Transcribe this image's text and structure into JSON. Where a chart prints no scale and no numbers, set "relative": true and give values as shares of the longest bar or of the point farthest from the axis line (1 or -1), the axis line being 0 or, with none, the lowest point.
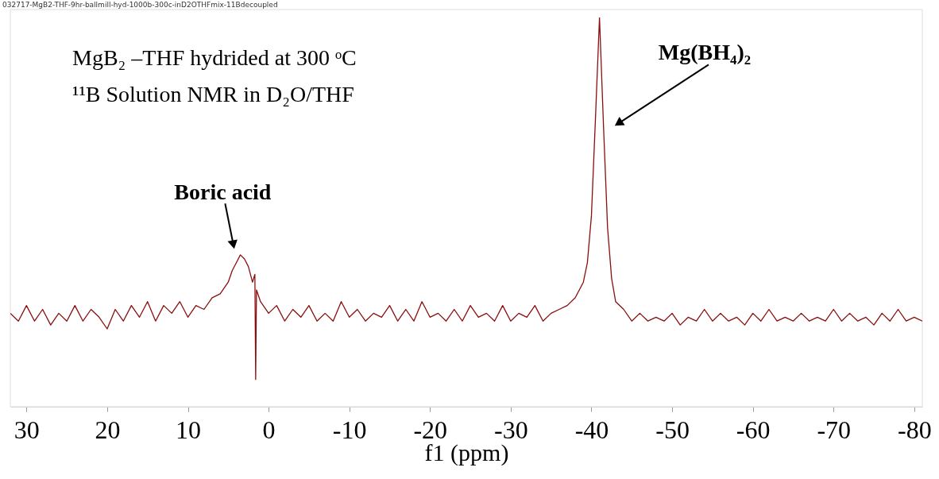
{
  "chart_data": {
    "type": "line",
    "title": "032717-MgB2-THF-9hr-ballmill-hyd-1000b-300c-inD2OTHFmix-11Bdecoupled",
    "xlabel": "f1 (ppm)",
    "relative": true,
    "grid": false,
    "marker": "none",
    "line_style": "solid",
    "xlim": [
      32,
      -81
    ],
    "xticks": [
      30,
      20,
      10,
      0,
      -10,
      -20,
      -30,
      -40,
      -50,
      -60,
      -70,
      -80
    ],
    "annotations": [
      "MgB₂ –THF hydrided  at 300 ᵒC",
      "¹¹B Solution NMR in D₂O/THF",
      {
        "text": "Boric acid",
        "x": 4.4,
        "y": 0.42
      },
      {
        "text": "Mg(BH₄)₂",
        "x": -43.5,
        "y": 0.73
      }
    ],
    "series": [
      {
        "color": "#8b0e0e",
        "x": [
          32,
          31,
          30,
          29,
          28,
          27,
          26,
          25,
          24,
          23,
          22,
          21,
          20,
          19,
          18,
          17,
          16,
          15,
          14,
          13,
          12,
          11,
          10,
          9,
          8,
          7,
          6,
          5,
          4.5,
          4,
          3.5,
          3,
          2.5,
          2,
          1.7,
          1.6,
          1.5,
          1,
          0,
          -1,
          -2,
          -3,
          -4,
          -5,
          -6,
          -7,
          -8,
          -9,
          -10,
          -11,
          -12,
          -13,
          -14,
          -15,
          -16,
          -17,
          -18,
          -19,
          -20,
          -21,
          -22,
          -23,
          -24,
          -25,
          -26,
          -27,
          -28,
          -29,
          -30,
          -31,
          -32,
          -33,
          -34,
          -35,
          -36,
          -37,
          -38,
          -39,
          -39.5,
          -40,
          -40.5,
          -41,
          -41.5,
          -42,
          -42.5,
          -43,
          -44,
          -45,
          -46,
          -47,
          -48,
          -49,
          -50,
          -51,
          -52,
          -53,
          -54,
          -55,
          -56,
          -57,
          -58,
          -59,
          -60,
          -61,
          -62,
          -63,
          -64,
          -65,
          -66,
          -67,
          -68,
          -69,
          -70,
          -71,
          -72,
          -73,
          -74,
          -75,
          -76,
          -77,
          -78,
          -79,
          -80,
          -81
        ],
        "values": [
          0.24,
          0.22,
          0.26,
          0.22,
          0.25,
          0.21,
          0.24,
          0.22,
          0.26,
          0.22,
          0.25,
          0.23,
          0.2,
          0.25,
          0.22,
          0.26,
          0.23,
          0.27,
          0.22,
          0.26,
          0.24,
          0.27,
          0.23,
          0.26,
          0.25,
          0.28,
          0.29,
          0.32,
          0.35,
          0.37,
          0.39,
          0.38,
          0.36,
          0.32,
          0.34,
          0.07,
          0.3,
          0.27,
          0.24,
          0.26,
          0.22,
          0.25,
          0.23,
          0.26,
          0.22,
          0.24,
          0.22,
          0.27,
          0.23,
          0.25,
          0.22,
          0.24,
          0.23,
          0.26,
          0.22,
          0.25,
          0.22,
          0.27,
          0.23,
          0.24,
          0.22,
          0.25,
          0.22,
          0.26,
          0.23,
          0.24,
          0.22,
          0.26,
          0.22,
          0.24,
          0.23,
          0.26,
          0.22,
          0.24,
          0.25,
          0.26,
          0.28,
          0.32,
          0.37,
          0.49,
          0.74,
          1,
          0.72,
          0.46,
          0.33,
          0.27,
          0.25,
          0.22,
          0.24,
          0.22,
          0.23,
          0.22,
          0.24,
          0.21,
          0.23,
          0.22,
          0.25,
          0.22,
          0.24,
          0.22,
          0.23,
          0.21,
          0.24,
          0.22,
          0.25,
          0.22,
          0.23,
          0.22,
          0.24,
          0.22,
          0.23,
          0.22,
          0.25,
          0.22,
          0.24,
          0.22,
          0.23,
          0.21,
          0.24,
          0.22,
          0.25,
          0.22,
          0.23,
          0.22
        ]
      }
    ]
  }
}
